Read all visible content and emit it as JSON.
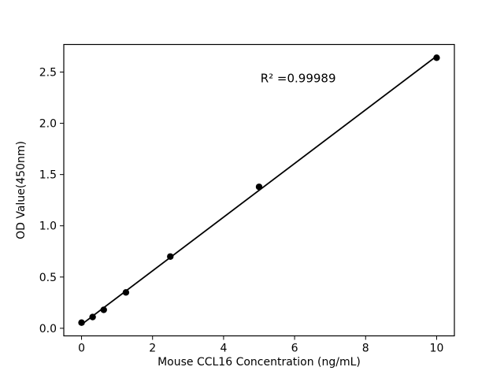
{
  "chart_data": {
    "type": "scatter",
    "title": "",
    "xlabel": "Mouse CCL16 Concentration (ng/mL)",
    "ylabel": "OD Value(450nm)",
    "x": [
      0,
      0.3125,
      0.625,
      1.25,
      2.5,
      5,
      10
    ],
    "y": [
      0.055,
      0.11,
      0.18,
      0.35,
      0.7,
      1.38,
      2.64
    ],
    "fit": "linear",
    "annotation": {
      "text": "R² =0.99989",
      "x": 6.1,
      "y": 2.4
    },
    "xlim": [
      -0.5,
      10.5
    ],
    "ylim": [
      -0.074,
      2.769
    ],
    "xticks": [
      0,
      2,
      4,
      6,
      8,
      10
    ],
    "xtick_labels": [
      "0",
      "2",
      "4",
      "6",
      "8",
      "10"
    ],
    "yticks": [
      0,
      0.5,
      1.0,
      1.5,
      2.0,
      2.5
    ],
    "ytick_labels": [
      "0.0",
      "0.5",
      "1.0",
      "1.5",
      "2.0",
      "2.5"
    ],
    "grid": false,
    "legend": null,
    "marker_color": "#000000",
    "line_color": "#000000",
    "axis_color": "#000000",
    "background": "#ffffff"
  }
}
